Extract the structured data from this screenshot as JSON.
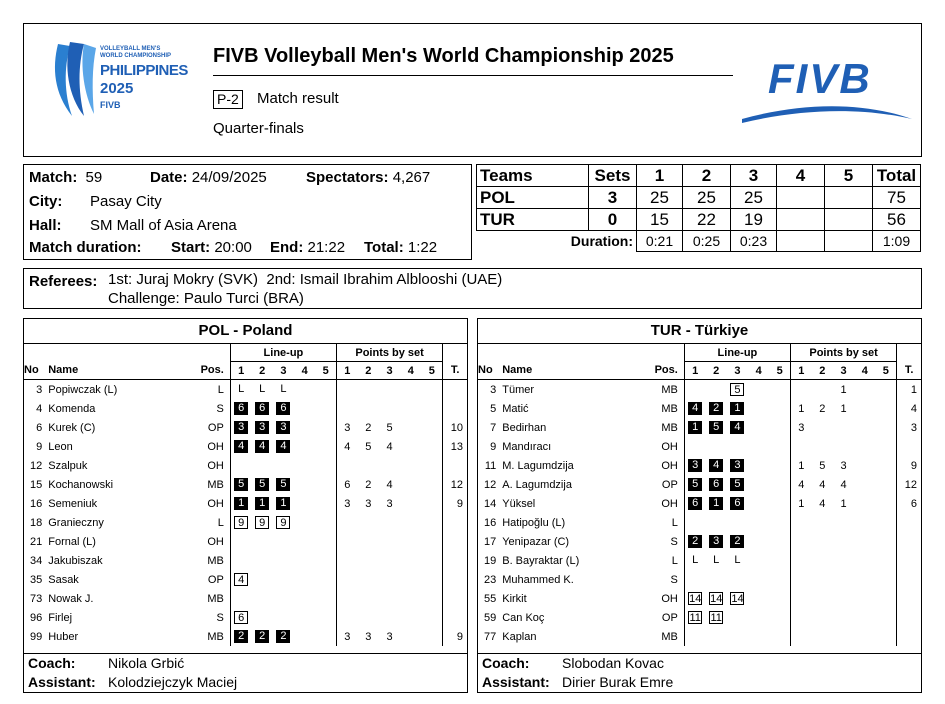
{
  "header": {
    "logo_left_text": [
      "VOLLEYBALL MEN'S",
      "WORLD CHAMPIONSHIP",
      "PHILIPPINES",
      "2025",
      "FIVB"
    ],
    "title": "FIVB Volleyball Men's World Championship 2025",
    "doc_code": "P-2",
    "doc_title": "Match result",
    "phase": "Quarter-finals",
    "logo_right_text": "FIVB"
  },
  "match_info": {
    "match_label": "Match:",
    "match": "59",
    "date_label": "Date:",
    "date": "24/09/2025",
    "spectators_label": "Spectators:",
    "spectators": "4,267",
    "city_label": "City:",
    "city": "Pasay City",
    "hall_label": "Hall:",
    "hall": "SM Mall of Asia Arena",
    "duration_label": "Match duration:",
    "start_label": "Start:",
    "start": "20:00",
    "end_label": "End:",
    "end": "21:22",
    "total_label": "Total:",
    "total": "1:22"
  },
  "score": {
    "headers": [
      "Teams",
      "Sets",
      "1",
      "2",
      "3",
      "4",
      "5",
      "Total"
    ],
    "rows": [
      {
        "team": "POL",
        "sets": "3",
        "s1": "25",
        "s2": "25",
        "s3": "25",
        "s4": "",
        "s5": "",
        "total": "75"
      },
      {
        "team": "TUR",
        "sets": "0",
        "s1": "15",
        "s2": "22",
        "s3": "19",
        "s4": "",
        "s5": "",
        "total": "56"
      }
    ],
    "duration_label": "Duration:",
    "durations": [
      "0:21",
      "0:25",
      "0:23",
      "",
      "",
      "1:09"
    ]
  },
  "referees": {
    "label": "Referees:",
    "line1": "1st: Juraj Mokry (SVK)  2nd: Ismail Ibrahim Alblooshi (UAE)",
    "line2": "Challenge: Paulo Turci (BRA)"
  },
  "col_headers": {
    "lineup": "Line-up",
    "points": "Points by set",
    "no": "No",
    "name": "Name",
    "pos": "Pos.",
    "sets": [
      "1",
      "2",
      "3",
      "4",
      "5"
    ],
    "t": "T."
  },
  "teams": [
    {
      "title": "POL - Poland",
      "players": [
        {
          "no": "3",
          "name": "Popiwczak (L)",
          "pos": "L",
          "lineup": [
            [
              "L",
              "t"
            ],
            [
              "L",
              "t"
            ],
            [
              "L",
              "t"
            ],
            [
              "",
              ""
            ],
            [
              "",
              ""
            ]
          ],
          "points": [
            "",
            "",
            "",
            "",
            ""
          ],
          "total": ""
        },
        {
          "no": "4",
          "name": "Komenda",
          "pos": "S",
          "lineup": [
            [
              "6",
              "k"
            ],
            [
              "6",
              "k"
            ],
            [
              "6",
              "k"
            ],
            [
              "",
              ""
            ],
            [
              "",
              ""
            ]
          ],
          "points": [
            "",
            "",
            "",
            "",
            ""
          ],
          "total": ""
        },
        {
          "no": "6",
          "name": "Kurek (C)",
          "pos": "OP",
          "lineup": [
            [
              "3",
              "k"
            ],
            [
              "3",
              "k"
            ],
            [
              "3",
              "k"
            ],
            [
              "",
              ""
            ],
            [
              "",
              ""
            ]
          ],
          "points": [
            "3",
            "2",
            "5",
            "",
            ""
          ],
          "total": "10"
        },
        {
          "no": "9",
          "name": "Leon",
          "pos": "OH",
          "lineup": [
            [
              "4",
              "k"
            ],
            [
              "4",
              "k"
            ],
            [
              "4",
              "k"
            ],
            [
              "",
              ""
            ],
            [
              "",
              ""
            ]
          ],
          "points": [
            "4",
            "5",
            "4",
            "",
            ""
          ],
          "total": "13"
        },
        {
          "no": "12",
          "name": "Szalpuk",
          "pos": "OH",
          "lineup": [
            [
              "",
              ""
            ],
            [
              "",
              ""
            ],
            [
              "",
              ""
            ],
            [
              "",
              ""
            ],
            [
              "",
              ""
            ]
          ],
          "points": [
            "",
            "",
            "",
            "",
            ""
          ],
          "total": ""
        },
        {
          "no": "15",
          "name": "Kochanowski",
          "pos": "MB",
          "lineup": [
            [
              "5",
              "k"
            ],
            [
              "5",
              "k"
            ],
            [
              "5",
              "k"
            ],
            [
              "",
              ""
            ],
            [
              "",
              ""
            ]
          ],
          "points": [
            "6",
            "2",
            "4",
            "",
            ""
          ],
          "total": "12"
        },
        {
          "no": "16",
          "name": "Semeniuk",
          "pos": "OH",
          "lineup": [
            [
              "1",
              "k"
            ],
            [
              "1",
              "k"
            ],
            [
              "1",
              "k"
            ],
            [
              "",
              ""
            ],
            [
              "",
              ""
            ]
          ],
          "points": [
            "3",
            "3",
            "3",
            "",
            ""
          ],
          "total": "9"
        },
        {
          "no": "18",
          "name": "Granieczny",
          "pos": "L",
          "lineup": [
            [
              "9",
              "w"
            ],
            [
              "9",
              "w"
            ],
            [
              "9",
              "w"
            ],
            [
              "",
              ""
            ],
            [
              "",
              ""
            ]
          ],
          "points": [
            "",
            "",
            "",
            "",
            ""
          ],
          "total": ""
        },
        {
          "no": "21",
          "name": "Fornal (L)",
          "pos": "OH",
          "lineup": [
            [
              "",
              ""
            ],
            [
              "",
              ""
            ],
            [
              "",
              ""
            ],
            [
              "",
              ""
            ],
            [
              "",
              ""
            ]
          ],
          "points": [
            "",
            "",
            "",
            "",
            ""
          ],
          "total": ""
        },
        {
          "no": "34",
          "name": "Jakubiszak",
          "pos": "MB",
          "lineup": [
            [
              "",
              ""
            ],
            [
              "",
              ""
            ],
            [
              "",
              ""
            ],
            [
              "",
              ""
            ],
            [
              "",
              ""
            ]
          ],
          "points": [
            "",
            "",
            "",
            "",
            ""
          ],
          "total": ""
        },
        {
          "no": "35",
          "name": "Sasak",
          "pos": "OP",
          "lineup": [
            [
              "4",
              "w"
            ],
            [
              "",
              ""
            ],
            [
              "",
              ""
            ],
            [
              "",
              ""
            ],
            [
              "",
              ""
            ]
          ],
          "points": [
            "",
            "",
            "",
            "",
            ""
          ],
          "total": ""
        },
        {
          "no": "73",
          "name": "Nowak J.",
          "pos": "MB",
          "lineup": [
            [
              "",
              ""
            ],
            [
              "",
              ""
            ],
            [
              "",
              ""
            ],
            [
              "",
              ""
            ],
            [
              "",
              ""
            ]
          ],
          "points": [
            "",
            "",
            "",
            "",
            ""
          ],
          "total": ""
        },
        {
          "no": "96",
          "name": "Firlej",
          "pos": "S",
          "lineup": [
            [
              "6",
              "w"
            ],
            [
              "",
              ""
            ],
            [
              "",
              ""
            ],
            [
              "",
              ""
            ],
            [
              "",
              ""
            ]
          ],
          "points": [
            "",
            "",
            "",
            "",
            ""
          ],
          "total": ""
        },
        {
          "no": "99",
          "name": "Huber",
          "pos": "MB",
          "lineup": [
            [
              "2",
              "k"
            ],
            [
              "2",
              "k"
            ],
            [
              "2",
              "k"
            ],
            [
              "",
              ""
            ],
            [
              "",
              ""
            ]
          ],
          "points": [
            "3",
            "3",
            "3",
            "",
            ""
          ],
          "total": "9"
        }
      ],
      "coach_label": "Coach:",
      "coach": "Nikola Grbić",
      "assistant_label": "Assistant:",
      "assistant": "Kolodziejczyk Maciej"
    },
    {
      "title": "TUR - Türkiye",
      "players": [
        {
          "no": "3",
          "name": "Tümer",
          "pos": "MB",
          "lineup": [
            [
              "",
              ""
            ],
            [
              "",
              ""
            ],
            [
              "5",
              "w"
            ],
            [
              "",
              ""
            ],
            [
              "",
              ""
            ]
          ],
          "points": [
            "",
            "",
            "1",
            "",
            ""
          ],
          "total": "1"
        },
        {
          "no": "5",
          "name": "Matić",
          "pos": "MB",
          "lineup": [
            [
              "4",
              "k"
            ],
            [
              "2",
              "k"
            ],
            [
              "1",
              "k"
            ],
            [
              "",
              ""
            ],
            [
              "",
              ""
            ]
          ],
          "points": [
            "1",
            "2",
            "1",
            "",
            ""
          ],
          "total": "4"
        },
        {
          "no": "7",
          "name": "Bedirhan",
          "pos": "MB",
          "lineup": [
            [
              "1",
              "k"
            ],
            [
              "5",
              "k"
            ],
            [
              "4",
              "k"
            ],
            [
              "",
              ""
            ],
            [
              "",
              ""
            ]
          ],
          "points": [
            "3",
            "",
            "",
            "",
            ""
          ],
          "total": "3"
        },
        {
          "no": "9",
          "name": "Mandıracı",
          "pos": "OH",
          "lineup": [
            [
              "",
              ""
            ],
            [
              "",
              ""
            ],
            [
              "",
              ""
            ],
            [
              "",
              ""
            ],
            [
              "",
              ""
            ]
          ],
          "points": [
            "",
            "",
            "",
            "",
            ""
          ],
          "total": ""
        },
        {
          "no": "11",
          "name": "M. Lagumdzija",
          "pos": "OH",
          "lineup": [
            [
              "3",
              "k"
            ],
            [
              "4",
              "k"
            ],
            [
              "3",
              "k"
            ],
            [
              "",
              ""
            ],
            [
              "",
              ""
            ]
          ],
          "points": [
            "1",
            "5",
            "3",
            "",
            ""
          ],
          "total": "9"
        },
        {
          "no": "12",
          "name": "A. Lagumdzija",
          "pos": "OP",
          "lineup": [
            [
              "5",
              "k"
            ],
            [
              "6",
              "k"
            ],
            [
              "5",
              "k"
            ],
            [
              "",
              ""
            ],
            [
              "",
              ""
            ]
          ],
          "points": [
            "4",
            "4",
            "4",
            "",
            ""
          ],
          "total": "12"
        },
        {
          "no": "14",
          "name": "Yüksel",
          "pos": "OH",
          "lineup": [
            [
              "6",
              "k"
            ],
            [
              "1",
              "k"
            ],
            [
              "6",
              "k"
            ],
            [
              "",
              ""
            ],
            [
              "",
              ""
            ]
          ],
          "points": [
            "1",
            "4",
            "1",
            "",
            ""
          ],
          "total": "6"
        },
        {
          "no": "16",
          "name": "Hatipoğlu (L)",
          "pos": "L",
          "lineup": [
            [
              "",
              ""
            ],
            [
              "",
              ""
            ],
            [
              "",
              ""
            ],
            [
              "",
              ""
            ],
            [
              "",
              ""
            ]
          ],
          "points": [
            "",
            "",
            "",
            "",
            ""
          ],
          "total": ""
        },
        {
          "no": "17",
          "name": "Yenipazar (C)",
          "pos": "S",
          "lineup": [
            [
              "2",
              "k"
            ],
            [
              "3",
              "k"
            ],
            [
              "2",
              "k"
            ],
            [
              "",
              ""
            ],
            [
              "",
              ""
            ]
          ],
          "points": [
            "",
            "",
            "",
            "",
            ""
          ],
          "total": ""
        },
        {
          "no": "19",
          "name": "B. Bayraktar (L)",
          "pos": "L",
          "lineup": [
            [
              "L",
              "t"
            ],
            [
              "L",
              "t"
            ],
            [
              "L",
              "t"
            ],
            [
              "",
              ""
            ],
            [
              "",
              ""
            ]
          ],
          "points": [
            "",
            "",
            "",
            "",
            ""
          ],
          "total": ""
        },
        {
          "no": "23",
          "name": "Muhammed K.",
          "pos": "S",
          "lineup": [
            [
              "",
              ""
            ],
            [
              "",
              ""
            ],
            [
              "",
              ""
            ],
            [
              "",
              ""
            ],
            [
              "",
              ""
            ]
          ],
          "points": [
            "",
            "",
            "",
            "",
            ""
          ],
          "total": ""
        },
        {
          "no": "55",
          "name": "Kirkit",
          "pos": "OH",
          "lineup": [
            [
              "14",
              "w"
            ],
            [
              "14",
              "w"
            ],
            [
              "14",
              "w"
            ],
            [
              "",
              ""
            ],
            [
              "",
              ""
            ]
          ],
          "points": [
            "",
            "",
            "",
            "",
            ""
          ],
          "total": ""
        },
        {
          "no": "59",
          "name": "Can Koç",
          "pos": "OP",
          "lineup": [
            [
              "11",
              "w"
            ],
            [
              "11",
              "w"
            ],
            [
              "",
              ""
            ],
            [
              "",
              ""
            ],
            [
              "",
              ""
            ]
          ],
          "points": [
            "",
            "",
            "",
            "",
            ""
          ],
          "total": ""
        },
        {
          "no": "77",
          "name": "Kaplan",
          "pos": "MB",
          "lineup": [
            [
              "",
              ""
            ],
            [
              "",
              ""
            ],
            [
              "",
              ""
            ],
            [
              "",
              ""
            ],
            [
              "",
              ""
            ]
          ],
          "points": [
            "",
            "",
            "",
            "",
            ""
          ],
          "total": ""
        }
      ],
      "coach_label": "Coach:",
      "coach": "Slobodan Kovac",
      "assistant_label": "Assistant:",
      "assistant": "Dirier Burak Emre"
    }
  ],
  "colors": {
    "fivb_blue": "#1f5fb5",
    "logo_blue": "#2a7fd0",
    "black": "#000000"
  }
}
